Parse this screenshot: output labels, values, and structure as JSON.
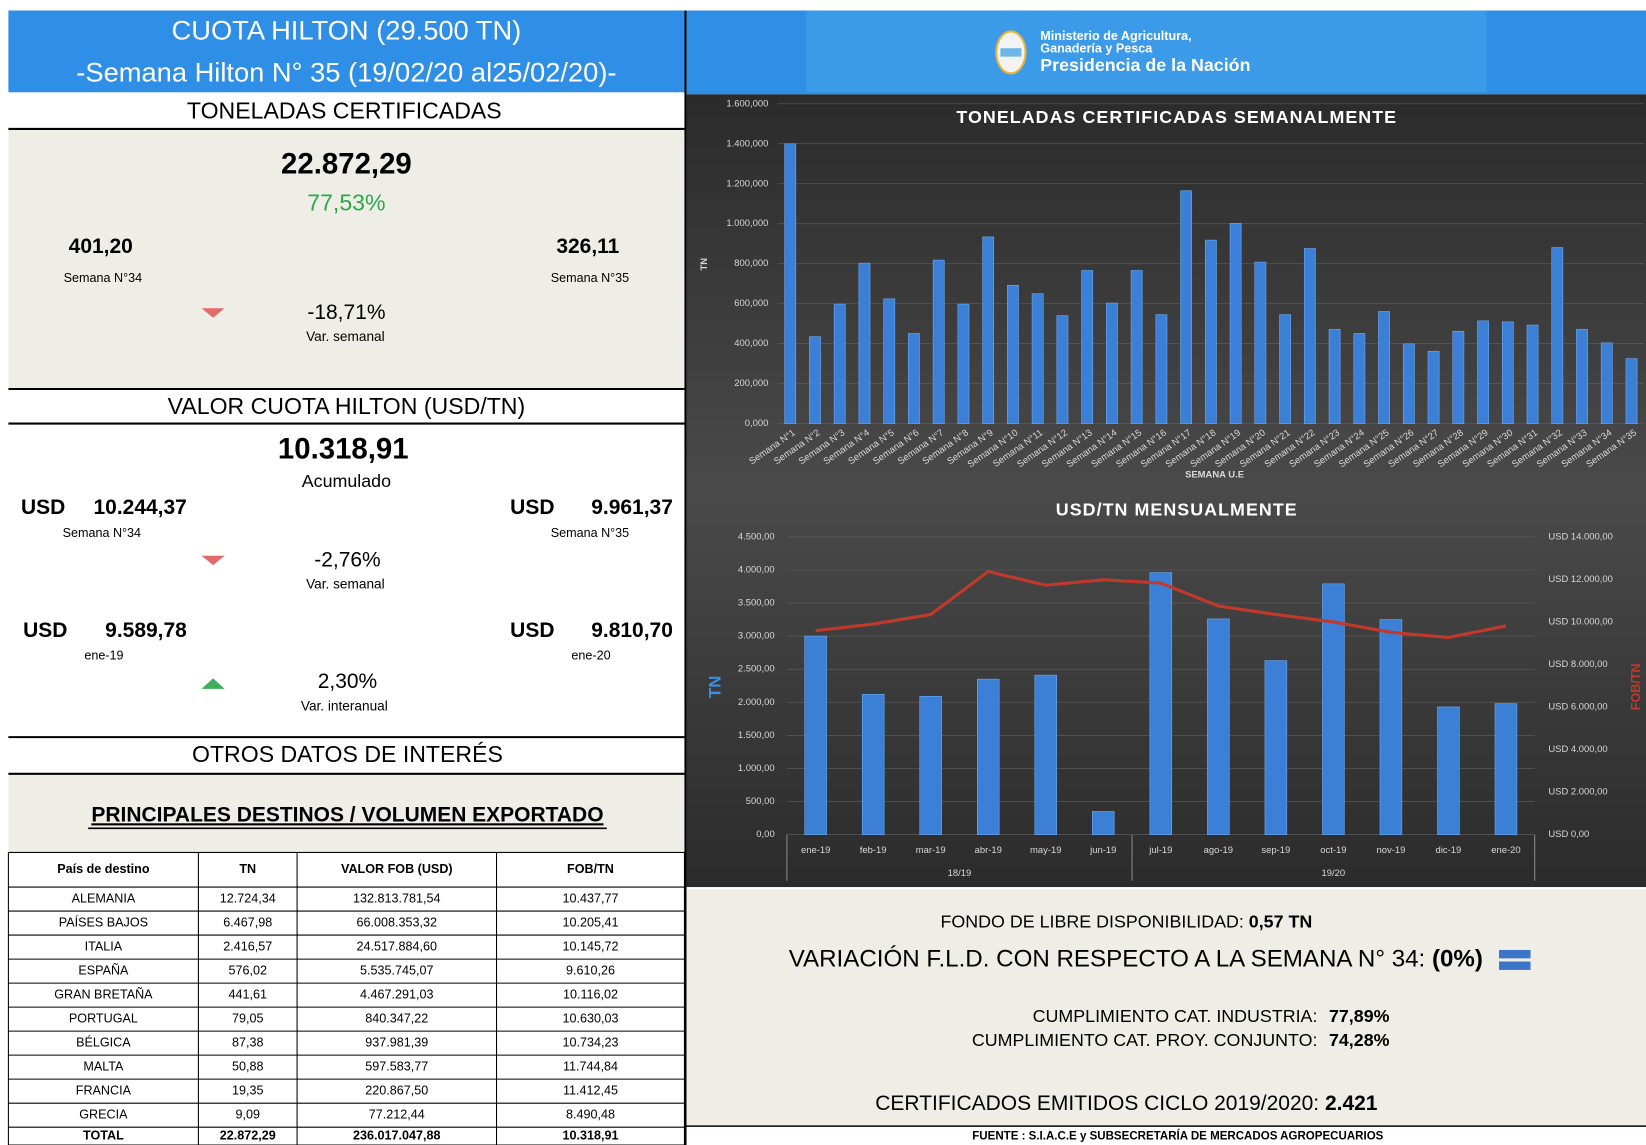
{
  "header": {
    "title": "CUOTA HILTON (29.500 TN)",
    "subtitle": "-Semana Hilton N° 35 (19/02/20 al25/02/20)-"
  },
  "logo": {
    "line1": "Ministerio de Agricultura,",
    "line2": "Ganadería y Pesca",
    "line3": "Presidencia de la Nación"
  },
  "toneladas": {
    "heading": "TONELADAS CERTIFICADAS",
    "total": "22.872,29",
    "percent": "77,53%",
    "left": {
      "value": "401,20",
      "label": "Semana N°34"
    },
    "right": {
      "value": "326,11",
      "label": "Semana N°35"
    },
    "variation": {
      "value": "-18,71%",
      "label": "Var. semanal"
    }
  },
  "valor": {
    "heading": "VALOR CUOTA HILTON  (USD/TN)",
    "total": "10.318,91",
    "total_label": "Acumulado",
    "currency": "USD",
    "left": {
      "value": "10.244,37",
      "label": "Semana N°34"
    },
    "right": {
      "value": "9.961,37",
      "label": "Semana N°35"
    },
    "variation": {
      "value": "-2,76%",
      "label": "Var. semanal"
    },
    "left2": {
      "value": "9.589,78",
      "label": "ene-19"
    },
    "right2": {
      "value": "9.810,70",
      "label": "ene-20"
    },
    "variation2": {
      "value": "2,30%",
      "label": "Var. interanual"
    }
  },
  "otros": {
    "heading": "OTROS DATOS DE INTERÉS",
    "subheading": "PRINCIPALES DESTINOS /  VOLUMEN EXPORTADO"
  },
  "table": {
    "columns": [
      "País de destino",
      "TN",
      "VALOR FOB (USD)",
      "FOB/TN"
    ],
    "rows": [
      [
        "ALEMANIA",
        "12.724,34",
        "132.813.781,54",
        "10.437,77"
      ],
      [
        "PAÍSES BAJOS",
        "6.467,98",
        "66.008.353,32",
        "10.205,41"
      ],
      [
        "ITALIA",
        "2.416,57",
        "24.517.884,60",
        "10.145,72"
      ],
      [
        "ESPAÑA",
        "576,02",
        "5.535.745,07",
        "9.610,26"
      ],
      [
        "GRAN BRETAÑA",
        "441,61",
        "4.467.291,03",
        "10.116,02"
      ],
      [
        "PORTUGAL",
        "79,05",
        "840.347,22",
        "10.630,03"
      ],
      [
        "BÉLGICA",
        "87,38",
        "937.981,39",
        "10.734,23"
      ],
      [
        "MALTA",
        "50,88",
        "597.583,77",
        "11.744,84"
      ],
      [
        "FRANCIA",
        "19,35",
        "220.867,50",
        "11.412,45"
      ],
      [
        "GRECIA",
        "9,09",
        "77.212,44",
        "8.490,48"
      ]
    ],
    "total": [
      "TOTAL",
      "22.872,29",
      "236.017.047,88",
      "10.318,91"
    ]
  },
  "fld": {
    "label": "FONDO DE LIBRE DISPONIBILIDAD: ",
    "value": "0,57 TN",
    "var_label": "VARIACIÓN F.L.D. CON RESPECTO A LA SEMANA N° 34: ",
    "var_value": "(0%)",
    "industria_label": "CUMPLIMIENTO CAT. INDUSTRIA:",
    "industria_value": "77,89%",
    "conjunto_label": "CUMPLIMIENTO CAT. PROY. CONJUNTO:",
    "conjunto_value": "74,28%",
    "cert_label": "CERTIFICADOS EMITIDOS CICLO 2019/2020: ",
    "cert_value": "2.421"
  },
  "source": "FUENTE : S.I.A.C.E y SUBSECRETARÍA DE MERCADOS AGROPECUARIOS",
  "chart_data": [
    {
      "type": "bar",
      "title": "TONELADAS  CERTIFICADAS  SEMANALMENTE",
      "x_label": "SEMANA U.E",
      "y_label": "TN",
      "color": "#3b7fd6",
      "grid": true,
      "categories": [
        "Semana N°1",
        "Semana N°2",
        "Semana N°3",
        "Semana N°4",
        "Semana N°5",
        "Semana N°6",
        "Semana N°7",
        "Semana N°8",
        "Semana N°9",
        "Semana N°10",
        "Semana N°11",
        "Semana N°12",
        "Semana N°13",
        "Semana N°14",
        "Semana N°15",
        "Semana N°16",
        "Semana N°17",
        "Semana N°18",
        "Semana N°19",
        "Semana N°20",
        "Semana N°21",
        "Semana N°22",
        "Semana N°23",
        "Semana N°24",
        "Semana N°25",
        "Semana N°26",
        "Semana N°27",
        "Semana N°28",
        "Semana N°29",
        "Semana N°30",
        "Semana N°31",
        "Semana N°32",
        "Semana N°33",
        "Semana N°34",
        "Semana N°35"
      ],
      "values": [
        1400000,
        435000,
        598000,
        803000,
        624000,
        451000,
        818000,
        598000,
        934000,
        692000,
        650000,
        540000,
        766000,
        603000,
        766000,
        545000,
        1165000,
        918000,
        1002000,
        808000,
        545000,
        876000,
        472000,
        451000,
        561000,
        399000,
        362000,
        462000,
        514000,
        509000,
        493000,
        881000,
        472000,
        404000,
        325000
      ],
      "ylim": [
        0,
        1600000
      ],
      "yticks": [
        {
          "value": 0,
          "label": "0,000"
        },
        {
          "value": 200000,
          "label": "200,000"
        },
        {
          "value": 400000,
          "label": "400,000"
        },
        {
          "value": 600000,
          "label": "600,000"
        },
        {
          "value": 800000,
          "label": "800,000"
        },
        {
          "value": 1000000,
          "label": "1.000,000"
        },
        {
          "value": 1200000,
          "label": "1.200,000"
        },
        {
          "value": 1400000,
          "label": "1.400,000"
        },
        {
          "value": 1600000,
          "label": "1.600,000"
        }
      ]
    },
    {
      "type": "combo",
      "title": "USD/TN  MENSUALMENTE",
      "y_label": "TN",
      "y2_label": "FOB/TN",
      "grid": true,
      "categories": [
        "ene-19",
        "feb-19",
        "mar-19",
        "abr-19",
        "may-19",
        "jun-19",
        "jul-19",
        "ago-19",
        "sep-19",
        "oct-19",
        "nov-19",
        "dic-19",
        "ene-20"
      ],
      "group_labels": [
        "18/19",
        "19/20"
      ],
      "group_sizes": [
        6,
        7
      ],
      "series": [
        {
          "type": "bar",
          "color": "#3b7fd6",
          "values": [
            3000,
            2120,
            2090,
            2350,
            2410,
            350,
            3960,
            3260,
            2630,
            3790,
            3250,
            1930,
            1980
          ]
        },
        {
          "type": "line",
          "color": "#c0392b",
          "axis": "y2",
          "values": [
            9590,
            9900,
            10350,
            12370,
            11730,
            11980,
            11830,
            10750,
            10350,
            10000,
            9510,
            9270,
            9810
          ]
        }
      ],
      "ylim": [
        0,
        4500
      ],
      "yticks": [
        {
          "value": 0,
          "label": "0,00"
        },
        {
          "value": 500,
          "label": "500,00"
        },
        {
          "value": 1000,
          "label": "1.000,00"
        },
        {
          "value": 1500,
          "label": "1.500,00"
        },
        {
          "value": 2000,
          "label": "2.000,00"
        },
        {
          "value": 2500,
          "label": "2.500,00"
        },
        {
          "value": 3000,
          "label": "3.000,00"
        },
        {
          "value": 3500,
          "label": "3.500,00"
        },
        {
          "value": 4000,
          "label": "4.000,00"
        },
        {
          "value": 4500,
          "label": "4.500,00"
        }
      ],
      "y2lim": [
        0,
        14000
      ],
      "y2ticks": [
        {
          "value": 0,
          "label": "USD 0,00"
        },
        {
          "value": 2000,
          "label": "USD 2.000,00"
        },
        {
          "value": 4000,
          "label": "USD 4.000,00"
        },
        {
          "value": 6000,
          "label": "USD 6.000,00"
        },
        {
          "value": 8000,
          "label": "USD 8.000,00"
        },
        {
          "value": 10000,
          "label": "USD 10.000,00"
        },
        {
          "value": 12000,
          "label": "USD 12.000,00"
        },
        {
          "value": 14000,
          "label": "USD 14.000,00"
        }
      ]
    }
  ]
}
